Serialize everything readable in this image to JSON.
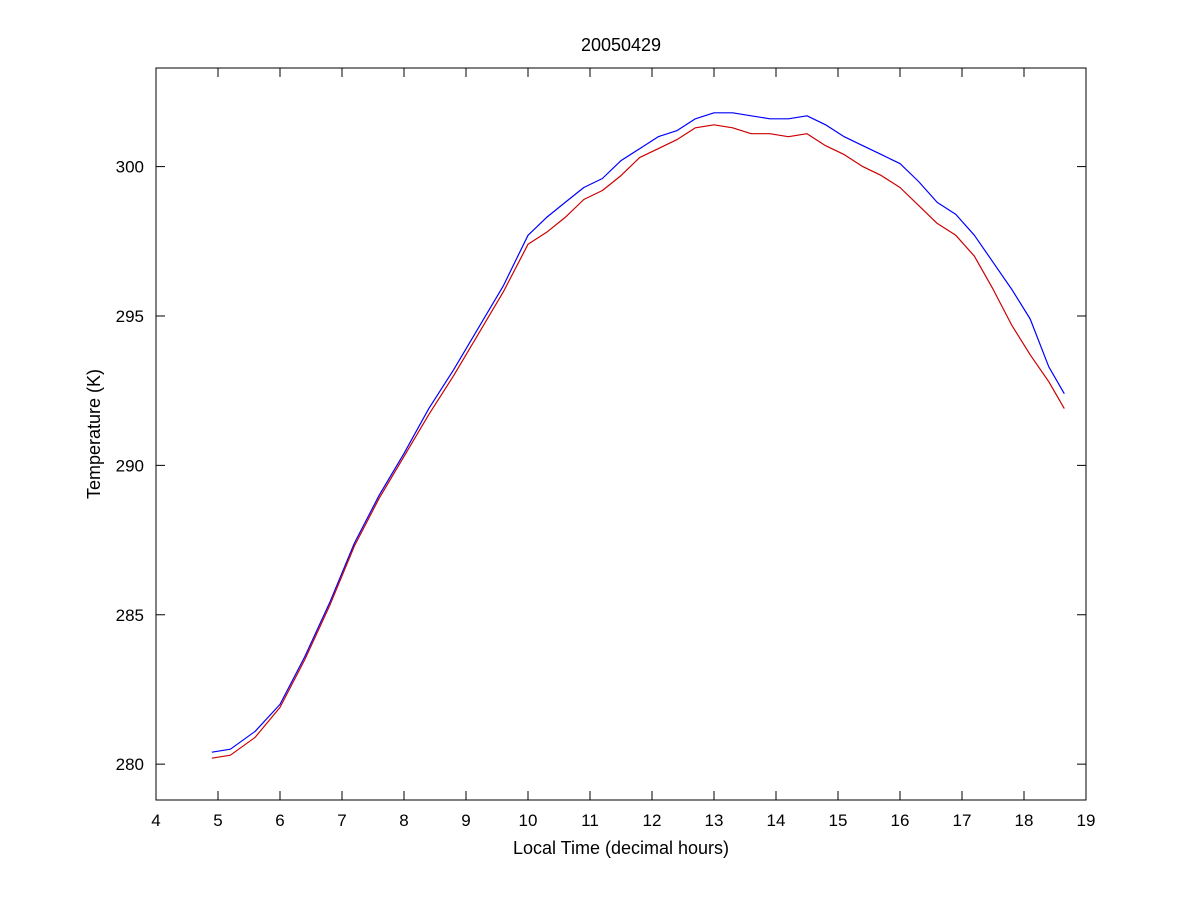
{
  "chart_data": {
    "type": "line",
    "title": "20050429",
    "xlabel": "Local Time (decimal hours)",
    "ylabel": "Temperature (K)",
    "xlim": [
      4,
      19
    ],
    "ylim": [
      278.8,
      303.3
    ],
    "xticks": [
      "4",
      "5",
      "6",
      "7",
      "8",
      "9",
      "10",
      "11",
      "12",
      "13",
      "14",
      "15",
      "16",
      "17",
      "18",
      "19"
    ],
    "yticks": [
      "280",
      "285",
      "290",
      "295",
      "300"
    ],
    "grid": false,
    "legend": "none",
    "series": [
      {
        "color": "#0000ff",
        "x": [
          4.9,
          5.2,
          5.6,
          6.0,
          6.4,
          6.8,
          7.2,
          7.6,
          8.0,
          8.4,
          8.8,
          9.2,
          9.6,
          10.0,
          10.3,
          10.6,
          10.9,
          11.2,
          11.5,
          11.8,
          12.1,
          12.4,
          12.7,
          13.0,
          13.3,
          13.6,
          13.9,
          14.2,
          14.5,
          14.8,
          15.1,
          15.4,
          15.7,
          16.0,
          16.3,
          16.6,
          16.9,
          17.2,
          17.5,
          17.8,
          18.1,
          18.4,
          18.65
        ],
        "y": [
          280.4,
          280.5,
          281.1,
          282.0,
          283.6,
          285.4,
          287.4,
          289.0,
          290.4,
          291.9,
          293.2,
          294.6,
          296.0,
          297.7,
          298.3,
          298.8,
          299.3,
          299.6,
          300.2,
          300.6,
          301.0,
          301.2,
          301.6,
          301.8,
          301.8,
          301.7,
          301.6,
          301.6,
          301.7,
          301.4,
          301.0,
          300.7,
          300.4,
          300.1,
          299.5,
          298.8,
          298.4,
          297.7,
          296.8,
          295.9,
          294.9,
          293.3,
          292.4
        ]
      },
      {
        "color": "#cc0000",
        "x": [
          4.9,
          5.2,
          5.6,
          6.0,
          6.4,
          6.8,
          7.2,
          7.6,
          8.0,
          8.4,
          8.8,
          9.2,
          9.6,
          10.0,
          10.3,
          10.6,
          10.9,
          11.2,
          11.5,
          11.8,
          12.1,
          12.4,
          12.7,
          13.0,
          13.3,
          13.6,
          13.9,
          14.2,
          14.5,
          14.8,
          15.1,
          15.4,
          15.7,
          16.0,
          16.3,
          16.6,
          16.9,
          17.2,
          17.5,
          17.8,
          18.1,
          18.4,
          18.65
        ],
        "y": [
          280.2,
          280.3,
          280.9,
          281.9,
          283.5,
          285.3,
          287.3,
          288.9,
          290.3,
          291.7,
          293.0,
          294.4,
          295.8,
          297.4,
          297.8,
          298.3,
          298.9,
          299.2,
          299.7,
          300.3,
          300.6,
          300.9,
          301.3,
          301.4,
          301.3,
          301.1,
          301.1,
          301.0,
          301.1,
          300.7,
          300.4,
          300.0,
          299.7,
          299.3,
          298.7,
          298.1,
          297.7,
          297.0,
          295.9,
          294.7,
          293.7,
          292.8,
          291.9
        ]
      }
    ]
  }
}
